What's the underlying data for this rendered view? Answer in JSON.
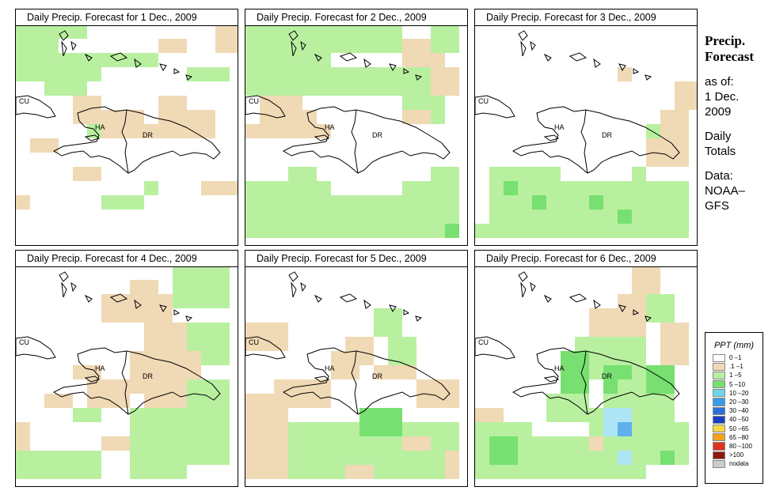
{
  "panels": [
    {
      "title": "Daily Precip. Forecast for  1 Dec., 2009"
    },
    {
      "title": "Daily Precip. Forecast for  2 Dec., 2009"
    },
    {
      "title": "Daily Precip. Forecast for  3 Dec., 2009"
    },
    {
      "title": "Daily Precip. Forecast for  4 Dec., 2009"
    },
    {
      "title": "Daily Precip. Forecast for  5 Dec., 2009"
    },
    {
      "title": "Daily Precip. Forecast for  6 Dec., 2009"
    }
  ],
  "map_labels": {
    "cu": "CU",
    "ha": "HA",
    "dr": "DR"
  },
  "side": {
    "title_line1": "Precip.",
    "title_line2": "Forecast",
    "asof_line1": "as of:",
    "asof_line2": "1 Dec.",
    "asof_line3": "2009",
    "totals_line1": "Daily",
    "totals_line2": "Totals",
    "source_line1": "Data:",
    "source_line2": "NOAA–",
    "source_line3": "GFS"
  },
  "legend": {
    "title": "PPT (mm)",
    "items": [
      {
        "label": "0 –1",
        "color": "#ffffff"
      },
      {
        "label": ".1 –1",
        "color": "#f0d9b5"
      },
      {
        "label": "1 –5",
        "color": "#b8f0a0"
      },
      {
        "label": "5 –10",
        "color": "#78e070"
      },
      {
        "label": "10 –20",
        "color": "#6fd6e8"
      },
      {
        "label": "20 –30",
        "color": "#3b9be6"
      },
      {
        "label": "30 –40",
        "color": "#2b6fd8"
      },
      {
        "label": "40 –50",
        "color": "#1a3fc2"
      },
      {
        "label": "50 –65",
        "color": "#f5d84a"
      },
      {
        "label": "65 –80",
        "color": "#f2a21c"
      },
      {
        "label": "80 –100",
        "color": "#e0321a"
      },
      {
        "label": ">100",
        "color": "#8a1a10"
      },
      {
        "label": "nodata",
        "color": "#cccccc"
      }
    ]
  }
}
